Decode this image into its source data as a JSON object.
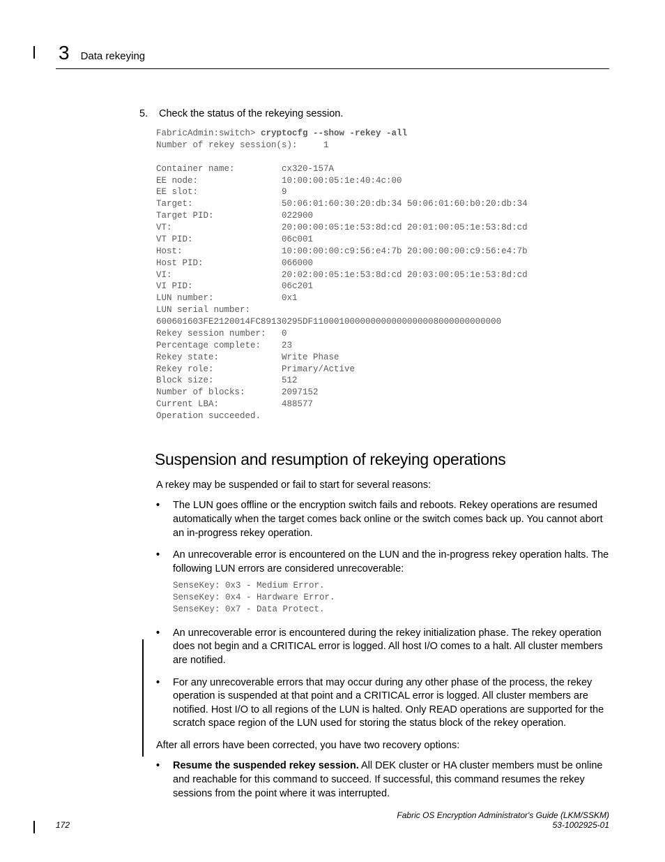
{
  "header": {
    "chapter_number": "3",
    "title": "Data rekeying"
  },
  "step": {
    "number": "5.",
    "text": "Check the status of the rekeying session."
  },
  "code_block": {
    "prompt": "FabricAdmin:switch> ",
    "command": "cryptocfg --show -rekey -all",
    "lines": [
      "Number of rekey session(s):     1",
      "",
      "Container name:         cx320-157A",
      "EE node:                10:00:00:05:1e:40:4c:00",
      "EE slot:                9",
      "Target:                 50:06:01:60:30:20:db:34 50:06:01:60:b0:20:db:34",
      "Target PID:             022900",
      "VT:                     20:00:00:05:1e:53:8d:cd 20:01:00:05:1e:53:8d:cd",
      "VT PID:                 06c001",
      "Host:                   10:00:00:00:c9:56:e4:7b 20:00:00:00:c9:56:e4:7b",
      "Host PID:               066000",
      "VI:                     20:02:00:05:1e:53:8d:cd 20:03:00:05:1e:53:8d:cd",
      "VI PID:                 06c201",
      "LUN number:             0x1",
      "LUN serial number:      ",
      "600601603FE2120014FC89130295DF110001000000000000000008000000000000",
      "Rekey session number:   0",
      "Percentage complete:    23",
      "Rekey state:            Write Phase",
      "Rekey role:             Primary/Active",
      "Block size:             512",
      "Number of blocks:       2097152",
      "Current LBA:            488577",
      "Operation succeeded."
    ]
  },
  "section": {
    "heading": "Suspension and resumption of rekeying operations",
    "intro": "A rekey may be suspended or fail to start for several reasons:",
    "bullets": [
      {
        "text": "The LUN goes offline or the encryption switch fails and reboots. Rekey operations are resumed automatically when the target comes back online or the switch comes back up. You cannot abort an in-progress rekey operation."
      },
      {
        "text": "An unrecoverable error is encountered on the LUN and the in-progress rekey operation halts. The following LUN errors are considered unrecoverable:",
        "mono": "SenseKey: 0x3 - Medium Error.\nSenseKey: 0x4 - Hardware Error.\nSenseKey: 0x7 - Data Protect."
      },
      {
        "text": "An unrecoverable error is encountered during the rekey initialization phase. The rekey operation does not begin and a CRITICAL error is logged. All host I/O comes to a halt. All cluster members are notified."
      },
      {
        "text": "For any unrecoverable errors that may occur during any other phase of the process, the rekey operation is suspended at that point and a CRITICAL error is logged. All cluster members are notified. Host I/O to all regions of the LUN is halted. Only READ operations are supported for the scratch space region of the LUN used for storing the status block of the rekey operation."
      }
    ],
    "after_text": "After all errors have been corrected, you have two recovery options:",
    "recovery_bullets": [
      {
        "bold": "Resume the suspended rekey session.",
        "text": " All DEK cluster or HA cluster members must be online and reachable for this command to succeed. If successful, this command resumes the rekey sessions from the point where it was interrupted."
      }
    ]
  },
  "footer": {
    "page_number": "172",
    "doc_title": "Fabric OS Encryption Administrator's Guide  (LKM/SSKM)",
    "doc_id": "53-1002925-01"
  }
}
